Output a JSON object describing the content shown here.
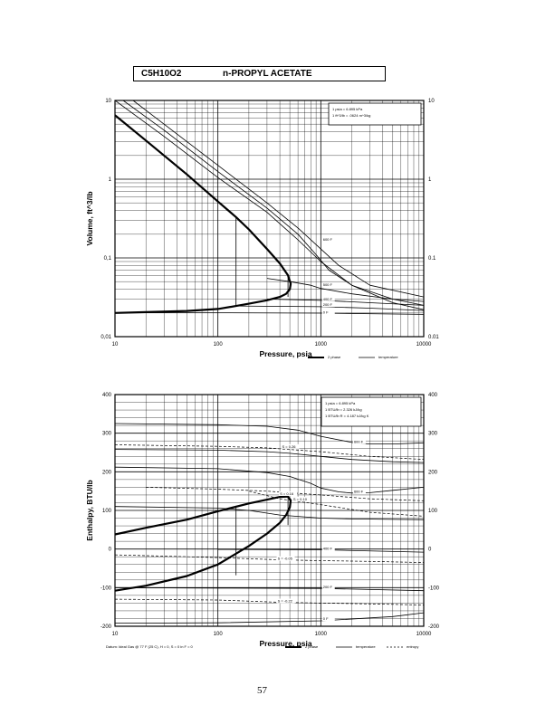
{
  "header": {
    "formula": "C5H10O2",
    "name": "n-PROPYL ACETATE"
  },
  "page_number": "57",
  "chart_data": [
    {
      "type": "line",
      "title": "",
      "xlabel": "Pressure,  psia",
      "ylabel": "Volume, ft^3/lb",
      "x_scale": "log",
      "y_scale": "log",
      "xlim": [
        10,
        10000
      ],
      "ylim": [
        0.01,
        10
      ],
      "x_ticks": [
        "10",
        "100",
        "1000",
        "10000"
      ],
      "y_ticks": [
        "0.01",
        "0.1",
        "1",
        "10"
      ],
      "grid": true,
      "conversions": [
        "1 psia  =  6.895 kPa",
        "1 ft^3/lb  =  .0624 m^3/kg"
      ],
      "legend_position": "bottom-right",
      "legend": [
        "2 phase",
        "temperature"
      ],
      "series": [
        {
          "name": "2 phase",
          "style": "thick",
          "x": [
            10,
            20,
            50,
            100,
            150,
            200,
            300,
            400,
            480,
            510,
            500,
            460,
            400,
            300,
            200,
            150,
            100,
            50,
            20,
            10
          ],
          "y": [
            6.5,
            3.1,
            1.15,
            0.52,
            0.33,
            0.23,
            0.13,
            0.085,
            0.06,
            0.047,
            0.04,
            0.035,
            0.032,
            0.029,
            0.0262,
            0.0245,
            0.0225,
            0.0212,
            0.0205,
            0.02
          ]
        },
        {
          "name": "",
          "style": "thin",
          "x": [
            10,
            30,
            100,
            300,
            600,
            1000,
            2000,
            5000,
            10000
          ],
          "y": [
            10,
            3.5,
            1.05,
            0.38,
            0.17,
            0.09,
            0.045,
            0.027,
            0.022
          ]
        },
        {
          "name": "",
          "style": "thin",
          "x": [
            12,
            30,
            100,
            300,
            600,
            900,
            1200,
            2000,
            5000,
            10000
          ],
          "y": [
            10,
            4.2,
            1.25,
            0.43,
            0.2,
            0.11,
            0.07,
            0.045,
            0.03,
            0.025
          ]
        },
        {
          "name": "600 F",
          "style": "thin",
          "x": [
            15,
            30,
            100,
            300,
            600,
            1000,
            1500,
            3000,
            10000
          ],
          "y": [
            10,
            5.0,
            1.5,
            0.5,
            0.24,
            0.13,
            0.08,
            0.045,
            0.032
          ]
        },
        {
          "name": "500 F",
          "style": "thin",
          "x": [
            300,
            500,
            800,
            1000,
            2000,
            5000,
            10000
          ],
          "y": [
            0.055,
            0.05,
            0.045,
            0.041,
            0.035,
            0.03,
            0.028
          ]
        },
        {
          "name": "400 F",
          "style": "thin",
          "x": [
            300,
            1000,
            3000,
            10000
          ],
          "y": [
            0.03,
            0.029,
            0.027,
            0.025
          ]
        },
        {
          "name": "200 F",
          "style": "thin",
          "x": [
            150,
            1000,
            3000,
            10000
          ],
          "y": [
            0.0245,
            0.024,
            0.023,
            0.0215
          ]
        },
        {
          "name": "0 F",
          "style": "thin",
          "x": [
            10,
            100,
            1000,
            10000
          ],
          "y": [
            0.0202,
            0.0201,
            0.0199,
            0.0192
          ]
        }
      ],
      "vertical_lines": [
        {
          "x": 150,
          "y_from": 0.0245,
          "y_to": 0.33
        },
        {
          "x": 480,
          "y_from": 0.032,
          "y_to": 0.06
        }
      ],
      "temperature_labels": [
        "600 F",
        "500 F",
        "400 F",
        "200 F",
        "0 F"
      ],
      "right_ticks": [
        "10",
        "1",
        "0.1",
        "0.01"
      ]
    },
    {
      "type": "line",
      "title": "",
      "xlabel": "Pressure,  psia",
      "ylabel": "Enthalpy, BTU/lb",
      "x_scale": "log",
      "y_scale": "linear",
      "xlim": [
        10,
        10000
      ],
      "ylim": [
        -200,
        400
      ],
      "x_ticks": [
        "10",
        "100",
        "1000",
        "10000"
      ],
      "y_ticks": [
        "-200",
        "-100",
        "0",
        "100",
        "200",
        "300",
        "400"
      ],
      "grid": true,
      "conversions": [
        "1 psia  =  6.895 kPa",
        "1 BTU/lb  =  2.326 kJ/kg",
        "1 BTU/lb R  =  4.187 kJ/kg K"
      ],
      "footnote": "Datum: Ideal Gas @ 77 F (25 C),  H = 0,  S = 0 in F = 0",
      "legend_position": "bottom-right",
      "legend": [
        "2 phase",
        "temperature",
        "entropy"
      ],
      "series": [
        {
          "name": "2 phase",
          "style": "thick",
          "x": [
            10,
            20,
            50,
            100,
            200,
            300,
            400,
            480,
            510,
            500,
            460,
            400,
            300,
            200,
            100,
            50,
            20,
            10
          ],
          "y": [
            38,
            55,
            76,
            98,
            118,
            128,
            135,
            136,
            126,
            108,
            88,
            68,
            40,
            8,
            -40,
            -70,
            -95,
            -108
          ]
        },
        {
          "name": "600 F",
          "style": "thin",
          "x": [
            10,
            100,
            300,
            600,
            1000,
            2000,
            3000,
            5000,
            10000
          ],
          "y": [
            325,
            322,
            318,
            308,
            292,
            276,
            272,
            272,
            275
          ]
        },
        {
          "name": "600 F",
          "style": "thin",
          "x": [
            10,
            100,
            300,
            500,
            800,
            1000,
            1500,
            2000,
            3000,
            5000,
            10000
          ],
          "y": [
            212,
            208,
            198,
            188,
            170,
            158,
            148,
            145,
            146,
            152,
            160
          ]
        },
        {
          "name": "",
          "style": "thin",
          "x": [
            10,
            100,
            300,
            500,
            1000,
            2000,
            5000,
            10000
          ],
          "y": [
            258,
            256,
            252,
            248,
            240,
            232,
            226,
            224
          ]
        },
        {
          "name": "",
          "style": "thin",
          "x": [
            10,
            100,
            200,
            400,
            1000,
            2000,
            10000
          ],
          "y": [
            110,
            106,
            100,
            88,
            80,
            78,
            76
          ]
        },
        {
          "name": "400 F",
          "style": "thin",
          "x": [
            100,
            1000,
            10000
          ],
          "y": [
            -1,
            -2,
            -8
          ]
        },
        {
          "name": "200 F",
          "style": "thin",
          "x": [
            10,
            100,
            1000,
            10000
          ],
          "y": [
            -100,
            -101,
            -102,
            -108
          ]
        },
        {
          "name": "0 F",
          "style": "thin",
          "x": [
            10,
            100,
            1000,
            5000,
            10000
          ],
          "y": [
            -192,
            -191,
            -186,
            -175,
            -165
          ]
        }
      ],
      "entropy_lines": [
        {
          "label": "S = 0.26",
          "x": [
            10,
            100,
            300,
            1000,
            3000,
            10000
          ],
          "y": [
            270,
            266,
            262,
            252,
            240,
            232
          ]
        },
        {
          "label": "S = 0.16",
          "x": [
            20,
            100,
            300,
            1000,
            3000,
            10000
          ],
          "y": [
            160,
            155,
            150,
            140,
            130,
            125
          ]
        },
        {
          "label": "S = 0.10",
          "x": [
            200,
            400,
            1000,
            3000,
            10000
          ],
          "y": [
            150,
            130,
            115,
            95,
            85
          ]
        },
        {
          "label": "S = -0.05",
          "x": [
            10,
            100,
            400,
            1000,
            3000,
            10000
          ],
          "y": [
            -15,
            -22,
            -28,
            -30,
            -32,
            -35
          ]
        },
        {
          "label": "S = -0.22",
          "x": [
            10,
            100,
            400,
            1000,
            3000,
            10000
          ],
          "y": [
            -130,
            -132,
            -138,
            -140,
            -142,
            -145
          ]
        }
      ],
      "vertical_lines": [
        {
          "x": 150,
          "y_from": -68,
          "y_to": 112
        },
        {
          "x": 480,
          "y_from": 62,
          "y_to": 136
        }
      ],
      "temperature_labels": [
        "600 F",
        "600 F",
        "400 F",
        "200 F",
        "0 F"
      ],
      "entropy_labels": [
        "S = 0.26",
        "S = 0.16",
        "S = 0.10",
        "S = -0.05",
        "S = -0.22"
      ],
      "right_ticks": [
        "400",
        "300",
        "200",
        "100",
        "0",
        "-100",
        "-200"
      ]
    }
  ]
}
